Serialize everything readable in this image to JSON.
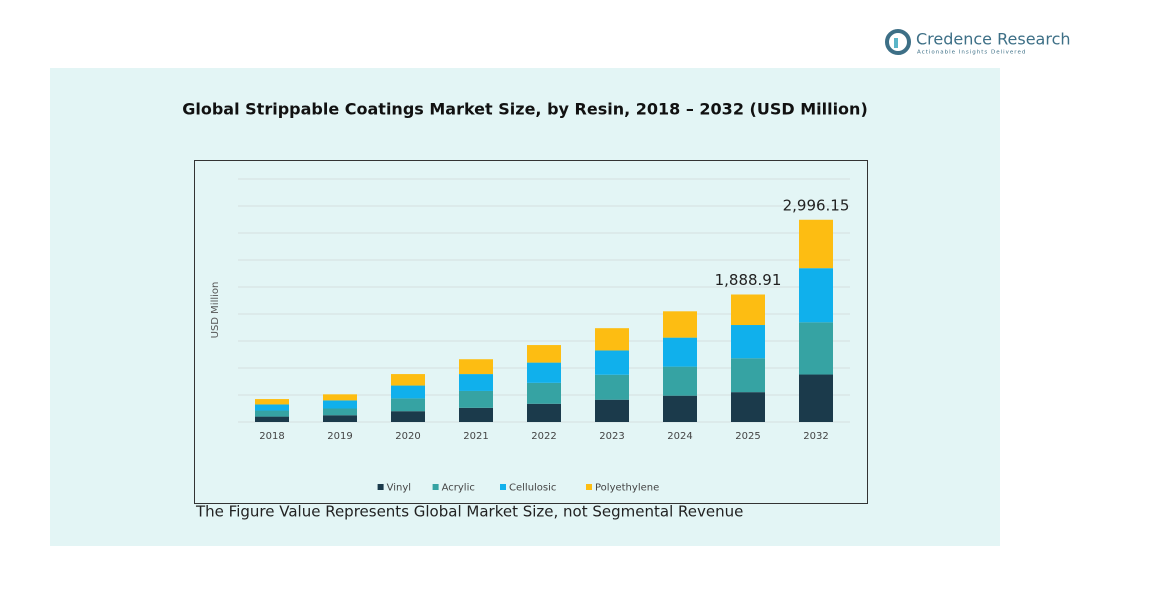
{
  "brand": {
    "name": "Credence Research",
    "tagline": "Actionable Insights Delivered"
  },
  "chart_data": {
    "type": "stacked_bar",
    "title": "Global Strippable Coatings Market Size, by Resin, 2018 – 2032 (USD Million)",
    "y_label": "USD Million",
    "categories": [
      "2018",
      "2019",
      "2020",
      "2021",
      "2022",
      "2023",
      "2024",
      "2025",
      "2032"
    ],
    "series": [
      {
        "name": "Vinyl",
        "color": "#1b3a4b",
        "values": [
          80,
          100,
          160,
          210,
          270,
          330,
          390,
          442.1,
          703.3
        ]
      },
      {
        "name": "Acrylic",
        "color": "#36a3a3",
        "values": [
          90,
          100,
          190,
          250,
          310,
          370,
          430,
          502.4,
          773.6
        ]
      },
      {
        "name": "Cellulosic",
        "color": "#10b0ec",
        "values": [
          90,
          120,
          190,
          250,
          300,
          360,
          430,
          492.3,
          801.8
        ]
      },
      {
        "name": "Polyethylene",
        "color": "#fdbd12",
        "values": [
          80,
          90,
          170,
          220,
          260,
          330,
          390,
          452.11,
          717.45
        ]
      }
    ],
    "total_labels": [
      {
        "category": "2025",
        "value": 1888.91,
        "label": "1,888.91"
      },
      {
        "category": "2032",
        "value": 2996.15,
        "label": "2,996.15"
      }
    ],
    "ylim": [
      0,
      3600
    ],
    "yticks": [
      0,
      400,
      800,
      1200,
      1600,
      2000,
      2400,
      2800,
      3200,
      3600
    ],
    "tick_labels": false,
    "grid": true,
    "legend": "bottom",
    "note": "The Figure Value Represents Global Market Size, not Segmental Revenue"
  }
}
